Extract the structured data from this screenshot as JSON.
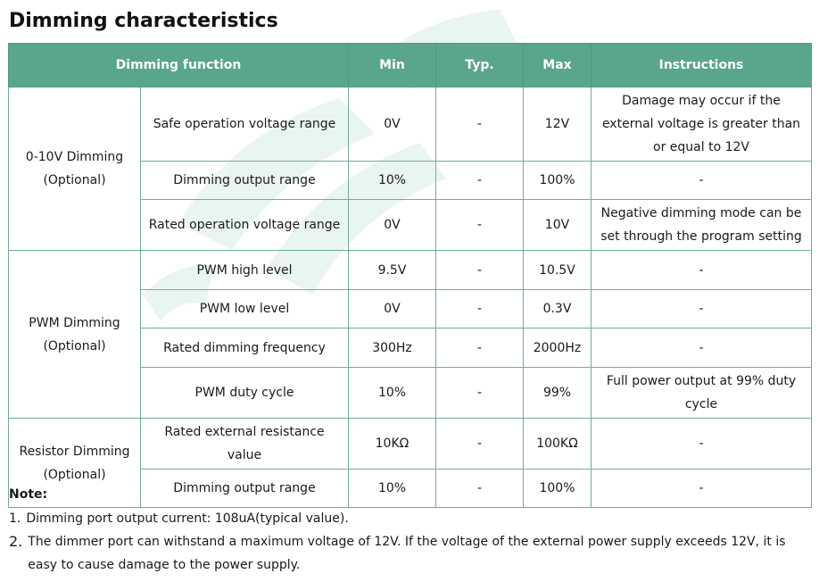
{
  "title": "Dimming characteristics",
  "table": {
    "headers": {
      "function": "Dimming function",
      "min": "Min",
      "typ": "Typ.",
      "max": "Max",
      "instructions": "Instructions"
    },
    "groups": [
      {
        "name": "0-10V Dimming (Optional)",
        "rows": [
          {
            "param": "Safe operation voltage range",
            "min": "0V",
            "typ": "-",
            "max": "12V",
            "instructions": "Damage may occur if the external voltage is greater than or equal to 12V"
          },
          {
            "param": "Dimming output range",
            "min": "10%",
            "typ": "-",
            "max": "100%",
            "instructions": "-"
          },
          {
            "param": "Rated operation voltage range",
            "min": "0V",
            "typ": "-",
            "max": "10V",
            "instructions": "Negative dimming mode can be set through the program setting"
          }
        ]
      },
      {
        "name": "PWM Dimming (Optional)",
        "rows": [
          {
            "param": "PWM high level",
            "min": "9.5V",
            "typ": "-",
            "max": "10.5V",
            "instructions": "-"
          },
          {
            "param": "PWM low level",
            "min": "0V",
            "typ": "-",
            "max": "0.3V",
            "instructions": "-"
          },
          {
            "param": "Rated dimming frequency",
            "min": "300Hz",
            "typ": "-",
            "max": "2000Hz",
            "instructions": "-"
          },
          {
            "param": "PWM duty cycle",
            "min": "10%",
            "typ": "-",
            "max": "99%",
            "instructions": "Full power output at 99% duty cycle"
          }
        ]
      },
      {
        "name": "Resistor Dimming (Optional)",
        "rows": [
          {
            "param": "Rated external resistance value",
            "min": "10KΩ",
            "typ": "-",
            "max": "100KΩ",
            "instructions": "-"
          },
          {
            "param": "Dimming output range",
            "min": "10%",
            "typ": "-",
            "max": "100%",
            "instructions": "-"
          }
        ]
      }
    ]
  },
  "notes": {
    "title": "Note:",
    "items": [
      {
        "num": "1.",
        "text": "Dimming port output current: 108uA(typical value)."
      },
      {
        "num": "2.",
        "text": "The dimmer port can withstand a maximum voltage of 12V. If the voltage of the external power supply exceeds 12V, it is easy to cause damage to the power supply."
      }
    ]
  }
}
